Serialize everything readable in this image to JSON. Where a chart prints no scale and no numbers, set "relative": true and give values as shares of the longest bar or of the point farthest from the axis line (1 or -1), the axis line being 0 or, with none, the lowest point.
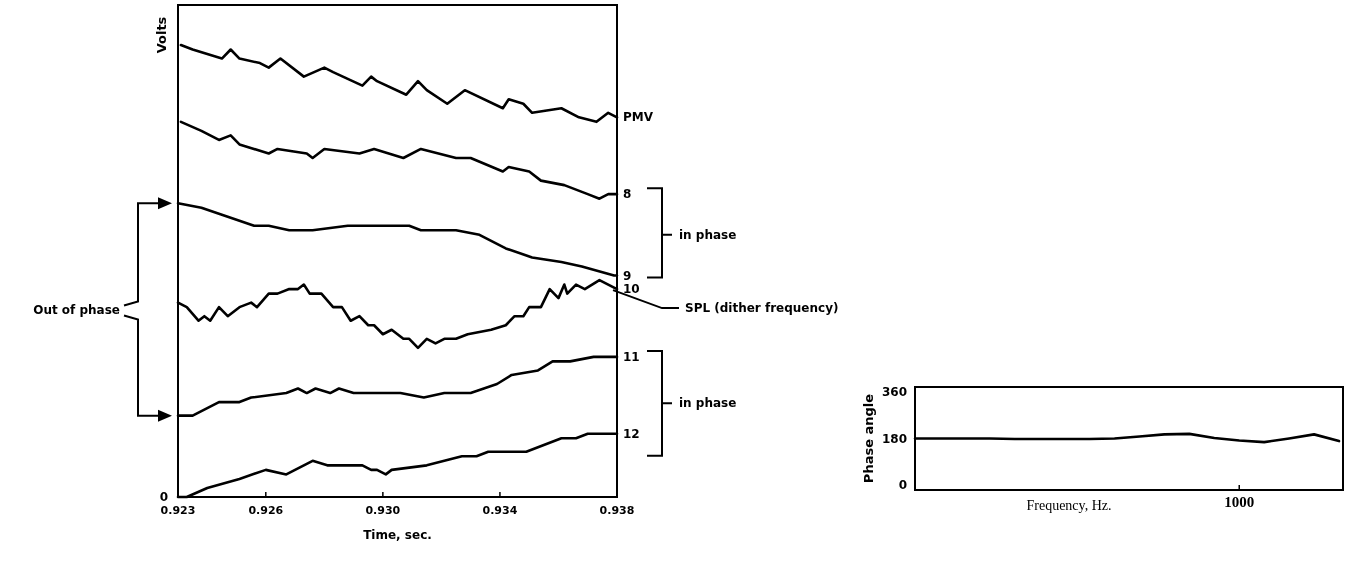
{
  "chart_data": [
    {
      "type": "line",
      "relative": true,
      "xlabel": "Time, sec.",
      "ylabel": "Volts",
      "xlim": [
        0.923,
        0.938
      ],
      "xticks": [
        0.923,
        0.926,
        {
          "value": 0.93,
          "label": "0.930"
        },
        0.934,
        0.938
      ],
      "series": [
        {
          "name": "PMV",
          "color": "#000000",
          "x": [
            0.9231,
            0.9235,
            0.9245,
            0.9248,
            0.9251,
            0.9258,
            0.9261,
            0.9265,
            0.9273,
            0.928,
            0.9283,
            0.9293,
            0.9296,
            0.9298,
            0.9308,
            0.9312,
            0.9315,
            0.9322,
            0.9328,
            0.9341,
            0.9343,
            0.9348,
            0.9351,
            0.9361,
            0.9367,
            0.9373,
            0.9377,
            0.938
          ],
          "values": [
            1.0,
            0.99,
            0.97,
            0.99,
            0.97,
            0.96,
            0.95,
            0.97,
            0.93,
            0.95,
            0.94,
            0.91,
            0.93,
            0.92,
            0.89,
            0.92,
            0.9,
            0.87,
            0.9,
            0.86,
            0.88,
            0.87,
            0.85,
            0.86,
            0.84,
            0.83,
            0.85,
            0.84
          ]
        },
        {
          "name": "8",
          "color": "#000000",
          "x": [
            0.9231,
            0.9238,
            0.9244,
            0.9248,
            0.9251,
            0.9261,
            0.9264,
            0.9274,
            0.9276,
            0.928,
            0.9292,
            0.9297,
            0.9307,
            0.9313,
            0.9325,
            0.933,
            0.9341,
            0.9343,
            0.935,
            0.9354,
            0.9362,
            0.937,
            0.9374,
            0.9377,
            0.938
          ],
          "values": [
            0.83,
            0.81,
            0.79,
            0.8,
            0.78,
            0.76,
            0.77,
            0.76,
            0.75,
            0.77,
            0.76,
            0.77,
            0.75,
            0.77,
            0.75,
            0.75,
            0.72,
            0.73,
            0.72,
            0.7,
            0.69,
            0.67,
            0.66,
            0.67,
            0.67
          ]
        },
        {
          "name": "9",
          "color": "#000000",
          "x": [
            0.923,
            0.9238,
            0.9247,
            0.9256,
            0.9261,
            0.9268,
            0.9276,
            0.9288,
            0.9309,
            0.9313,
            0.9325,
            0.9333,
            0.9342,
            0.9351,
            0.9361,
            0.9368,
            0.9379,
            0.938
          ],
          "values": [
            0.65,
            0.64,
            0.62,
            0.6,
            0.6,
            0.59,
            0.59,
            0.6,
            0.6,
            0.59,
            0.59,
            0.58,
            0.55,
            0.53,
            0.52,
            0.51,
            0.49,
            0.49
          ]
        },
        {
          "name": "10",
          "color": "#000000",
          "x": [
            0.923,
            0.9233,
            0.9237,
            0.9239,
            0.9241,
            0.9244,
            0.9247,
            0.9251,
            0.9255,
            0.9257,
            0.9261,
            0.9264,
            0.9268,
            0.9271,
            0.9273,
            0.9275,
            0.9279,
            0.9283,
            0.9286,
            0.9289,
            0.9292,
            0.9295,
            0.9297,
            0.93,
            0.9303,
            0.9307,
            0.9309,
            0.9312,
            0.9315,
            0.9318,
            0.9321,
            0.9325,
            0.9329,
            0.9337,
            0.9342,
            0.9345,
            0.9348,
            0.935,
            0.9354,
            0.9357,
            0.936,
            0.9362,
            0.9363,
            0.9366,
            0.9369,
            0.9374,
            0.9377,
            0.938
          ],
          "values": [
            0.43,
            0.42,
            0.39,
            0.4,
            0.39,
            0.42,
            0.4,
            0.42,
            0.43,
            0.42,
            0.45,
            0.45,
            0.46,
            0.46,
            0.47,
            0.45,
            0.45,
            0.42,
            0.42,
            0.39,
            0.4,
            0.38,
            0.38,
            0.36,
            0.37,
            0.35,
            0.35,
            0.33,
            0.35,
            0.34,
            0.35,
            0.35,
            0.36,
            0.37,
            0.38,
            0.4,
            0.4,
            0.42,
            0.42,
            0.46,
            0.44,
            0.47,
            0.45,
            0.47,
            0.46,
            0.48,
            0.47,
            0.46
          ]
        },
        {
          "name": "11",
          "color": "#000000",
          "x": [
            0.923,
            0.9235,
            0.9244,
            0.9251,
            0.9255,
            0.9267,
            0.9271,
            0.9274,
            0.9277,
            0.9282,
            0.9285,
            0.929,
            0.9301,
            0.9306,
            0.9314,
            0.9321,
            0.933,
            0.9339,
            0.9344,
            0.9353,
            0.9358,
            0.9364,
            0.9372,
            0.938
          ],
          "values": [
            0.18,
            0.18,
            0.21,
            0.21,
            0.22,
            0.23,
            0.24,
            0.23,
            0.24,
            0.23,
            0.24,
            0.23,
            0.23,
            0.23,
            0.22,
            0.23,
            0.23,
            0.25,
            0.27,
            0.28,
            0.3,
            0.3,
            0.31,
            0.31
          ]
        },
        {
          "name": "12",
          "color": "#000000",
          "x": [
            0.923,
            0.9233,
            0.924,
            0.9251,
            0.926,
            0.9267,
            0.9273,
            0.9276,
            0.9281,
            0.9293,
            0.9296,
            0.9298,
            0.9301,
            0.9303,
            0.9315,
            0.9321,
            0.9327,
            0.9332,
            0.9336,
            0.9343,
            0.9349,
            0.9361,
            0.9366,
            0.937,
            0.9374,
            0.938
          ],
          "values": [
            0,
            0,
            0.02,
            0.04,
            0.06,
            0.05,
            0.07,
            0.08,
            0.07,
            0.07,
            0.06,
            0.06,
            0.05,
            0.06,
            0.07,
            0.08,
            0.09,
            0.09,
            0.1,
            0.1,
            0.1,
            0.13,
            0.13,
            0.14,
            0.14,
            0.14
          ]
        }
      ],
      "annotations": [
        "0",
        "in phase",
        "in phase",
        "Out of phase",
        "SPL (dither frequency)"
      ]
    },
    {
      "type": "line",
      "xlabel": "Frequency, Hz.",
      "ylabel": "Phase angle",
      "ylim": [
        -20,
        380
      ],
      "yticks": [
        0,
        180,
        360
      ],
      "categories": [
        null,
        null,
        null,
        null,
        null,
        null,
        null,
        null,
        null,
        null,
        null,
        null,
        null,
        "1000",
        null,
        null,
        null,
        null
      ],
      "series": [
        {
          "color": "#000000",
          "values": [
            180,
            180,
            180,
            180,
            178,
            178,
            178,
            178,
            180,
            188,
            196,
            198,
            182,
            172,
            166,
            180,
            196,
            170
          ]
        }
      ]
    }
  ]
}
